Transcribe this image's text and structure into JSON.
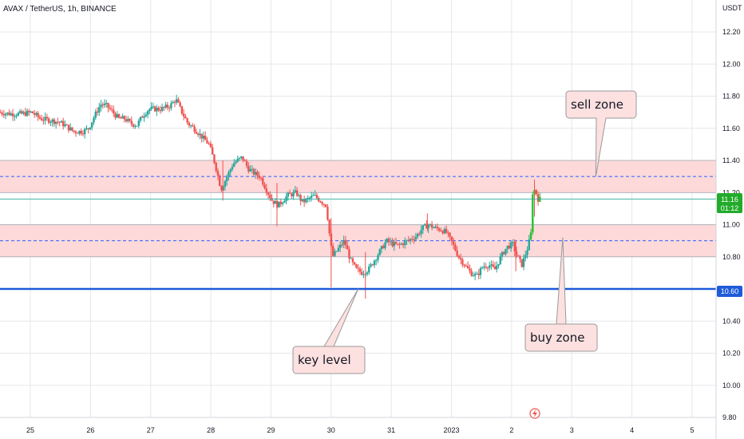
{
  "header": {
    "symbol_title": "AVAX / TetherUS, 1h, BINANCE",
    "currency": "USDT"
  },
  "colors": {
    "up": "#26a69a",
    "up_bright": "#22c32a",
    "down": "#ef5350",
    "zone_fill": "#fdd9da",
    "zone_line": "#9ca3af",
    "mid_dash": "#2962ff",
    "key_line": "#1e5bd8",
    "price_line": "#26a69a",
    "grid": "#e5e7eb",
    "callout_fill": "#fde0e0",
    "callout_stroke": "#9a9a9a",
    "badge_green": "#22ab2a",
    "badge_blue": "#1e5bd8"
  },
  "chart_data": {
    "type": "candlestick",
    "title": "AVAX / TetherUS, 1h, BINANCE",
    "ylabel": "USDT",
    "ylim": [
      9.8,
      12.35
    ],
    "yticks": [
      "12.20",
      "12.00",
      "11.80",
      "11.60",
      "11.40",
      "11.20",
      "11.00",
      "10.80",
      "10.60",
      "10.40",
      "10.20",
      "10.00",
      "9.80"
    ],
    "x_ticks": [
      {
        "label": "25",
        "day": 25
      },
      {
        "label": "26",
        "day": 26
      },
      {
        "label": "27",
        "day": 27
      },
      {
        "label": "28",
        "day": 28
      },
      {
        "label": "29",
        "day": 29
      },
      {
        "label": "30",
        "day": 30
      },
      {
        "label": "31",
        "day": 31
      },
      {
        "label": "2023",
        "day": 32
      },
      {
        "label": "2",
        "day": 33
      },
      {
        "label": "3",
        "day": 34
      },
      {
        "label": "4",
        "day": 35
      },
      {
        "label": "5",
        "day": 36
      }
    ],
    "zones": [
      {
        "name": "sell zone",
        "low": 11.2,
        "high": 11.4,
        "mid": 11.3
      },
      {
        "name": "buy zone",
        "low": 10.8,
        "high": 11.0,
        "mid": 10.9
      }
    ],
    "key_level": 10.6,
    "current_price": {
      "value": 11.16,
      "label": "11.16",
      "countdown": "01:12"
    },
    "key_level_label": "10.60",
    "annotations": [
      {
        "text": "sell zone",
        "target_day": 34.4,
        "target_price": 11.3
      },
      {
        "text": "buy zone",
        "target_day": 33.85,
        "target_price": 10.92
      },
      {
        "text": "key level",
        "target_day": 30.45,
        "target_price": 10.6
      }
    ],
    "anchors": [
      [
        24.5,
        11.7
      ],
      [
        24.7,
        11.69
      ],
      [
        24.9,
        11.69
      ],
      [
        25.05,
        11.7
      ],
      [
        25.2,
        11.66
      ],
      [
        25.35,
        11.65
      ],
      [
        25.5,
        11.64
      ],
      [
        25.6,
        11.62
      ],
      [
        25.75,
        11.58
      ],
      [
        25.9,
        11.58
      ],
      [
        26.0,
        11.6
      ],
      [
        26.1,
        11.68
      ],
      [
        26.2,
        11.75
      ],
      [
        26.3,
        11.74
      ],
      [
        26.4,
        11.7
      ],
      [
        26.5,
        11.66
      ],
      [
        26.6,
        11.66
      ],
      [
        26.7,
        11.63
      ],
      [
        26.8,
        11.62
      ],
      [
        26.9,
        11.68
      ],
      [
        27.0,
        11.72
      ],
      [
        27.2,
        11.72
      ],
      [
        27.35,
        11.74
      ],
      [
        27.45,
        11.78
      ],
      [
        27.55,
        11.7
      ],
      [
        27.65,
        11.63
      ],
      [
        27.75,
        11.6
      ],
      [
        27.85,
        11.56
      ],
      [
        28.0,
        11.5
      ],
      [
        28.1,
        11.38
      ],
      [
        28.2,
        11.22
      ],
      [
        28.3,
        11.3
      ],
      [
        28.4,
        11.38
      ],
      [
        28.55,
        11.42
      ],
      [
        28.65,
        11.35
      ],
      [
        28.75,
        11.32
      ],
      [
        28.85,
        11.3
      ],
      [
        28.95,
        11.22
      ],
      [
        29.05,
        11.15
      ],
      [
        29.15,
        11.12
      ],
      [
        29.3,
        11.18
      ],
      [
        29.45,
        11.2
      ],
      [
        29.55,
        11.14
      ],
      [
        29.65,
        11.16
      ],
      [
        29.75,
        11.18
      ],
      [
        29.85,
        11.15
      ],
      [
        29.95,
        11.12
      ],
      [
        30.0,
        10.95
      ],
      [
        30.05,
        10.8
      ],
      [
        30.15,
        10.85
      ],
      [
        30.25,
        10.9
      ],
      [
        30.35,
        10.78
      ],
      [
        30.45,
        10.72
      ],
      [
        30.55,
        10.7
      ],
      [
        30.65,
        10.72
      ],
      [
        30.75,
        10.78
      ],
      [
        30.85,
        10.84
      ],
      [
        30.95,
        10.9
      ],
      [
        31.05,
        10.88
      ],
      [
        31.15,
        10.87
      ],
      [
        31.3,
        10.9
      ],
      [
        31.45,
        10.93
      ],
      [
        31.55,
        10.98
      ],
      [
        31.65,
        11.0
      ],
      [
        31.75,
        10.98
      ],
      [
        31.85,
        10.97
      ],
      [
        31.95,
        10.95
      ],
      [
        32.05,
        10.88
      ],
      [
        32.15,
        10.8
      ],
      [
        32.25,
        10.75
      ],
      [
        32.35,
        10.7
      ],
      [
        32.45,
        10.68
      ],
      [
        32.55,
        10.74
      ],
      [
        32.65,
        10.75
      ],
      [
        32.75,
        10.72
      ],
      [
        32.85,
        10.8
      ],
      [
        32.95,
        10.86
      ],
      [
        33.05,
        10.88
      ],
      [
        33.1,
        10.82
      ],
      [
        33.2,
        10.75
      ],
      [
        33.3,
        10.86
      ],
      [
        33.35,
        10.94
      ],
      [
        33.38,
        11.2
      ],
      [
        33.42,
        11.22
      ],
      [
        33.47,
        11.16
      ]
    ]
  }
}
